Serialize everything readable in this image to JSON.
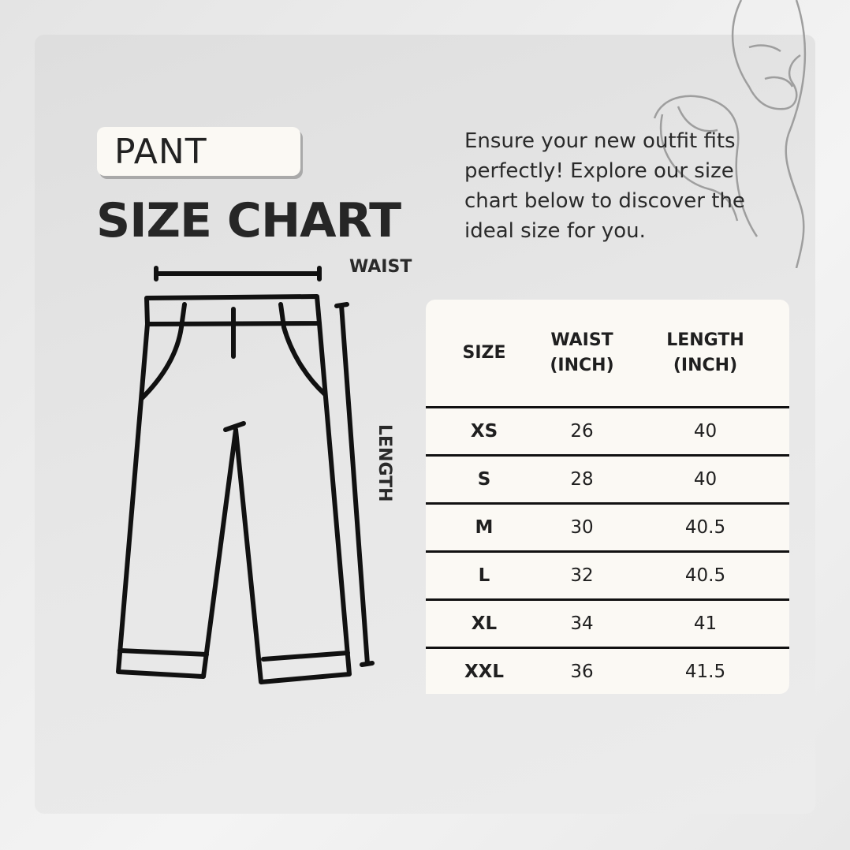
{
  "header": {
    "badge": "PANT",
    "title": "SIZE CHART"
  },
  "intro": "Ensure your new outfit fits perfectly! Explore our size chart below to discover the ideal size for you.",
  "diagram": {
    "waist_label": "WAIST",
    "length_label": "LENGTH",
    "icon": "pants-outline-icon"
  },
  "decoration": {
    "icon": "face-line-art-icon"
  },
  "table": {
    "headers": [
      [
        "SIZE"
      ],
      [
        "WAIST",
        "(INCH)"
      ],
      [
        "LENGTH",
        "(INCH)"
      ]
    ],
    "rows": [
      [
        "XS",
        "26",
        "40"
      ],
      [
        "S",
        "28",
        "40"
      ],
      [
        "M",
        "30",
        "40.5"
      ],
      [
        "L",
        "32",
        "40.5"
      ],
      [
        "XL",
        "34",
        "41"
      ],
      [
        "XXL",
        "36",
        "41.5"
      ]
    ]
  }
}
